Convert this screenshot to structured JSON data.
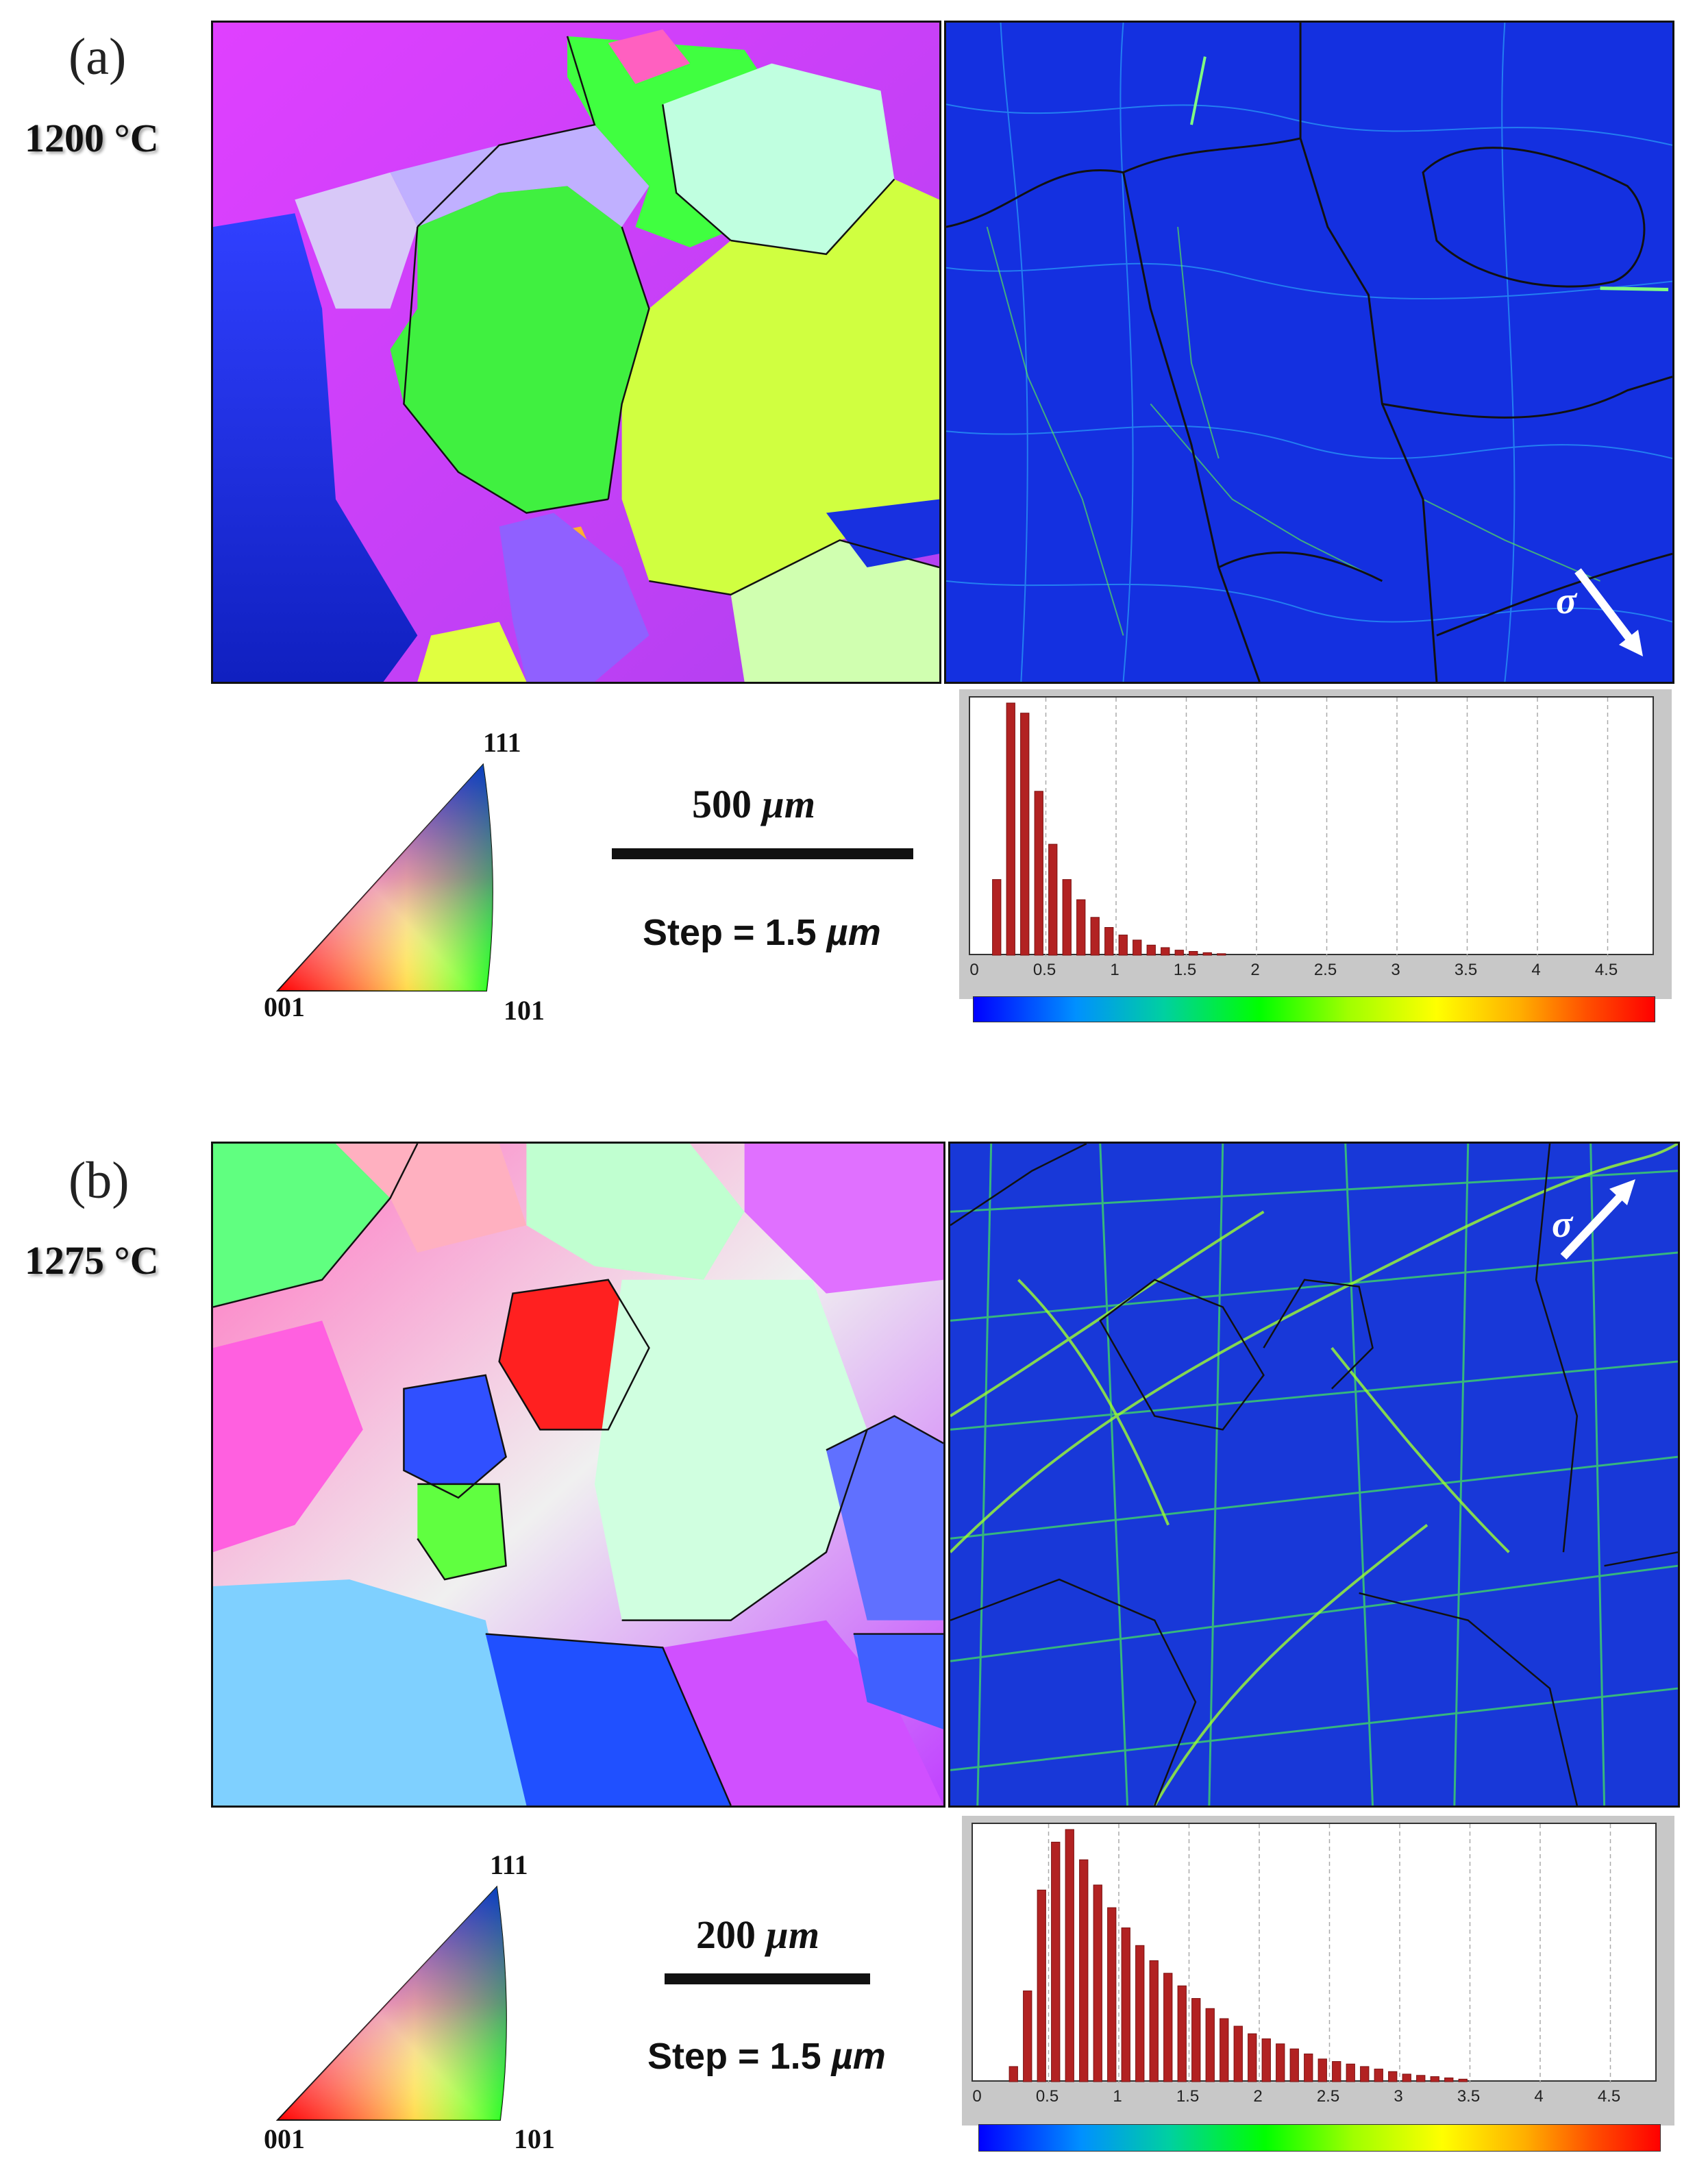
{
  "panels": [
    {
      "label": "(a)",
      "temperature": "1200 °C",
      "ipf": {
        "corner_111": "111",
        "corner_001": "001",
        "corner_101": "101"
      },
      "scale": {
        "value": "500 ",
        "unit": "µm",
        "step_prefix": "Step = 1.5 ",
        "step_unit": "µm"
      },
      "stress_symbol": "σ"
    },
    {
      "label": "(b)",
      "temperature": "1275 °C",
      "ipf": {
        "corner_111": "111",
        "corner_001": "001",
        "corner_101": "101"
      },
      "scale": {
        "value": "200 ",
        "unit": "µm",
        "step_prefix": "Step = 1.5 ",
        "step_unit": "µm"
      },
      "stress_symbol": "σ"
    }
  ],
  "chart_data": [
    {
      "type": "bar",
      "title": "",
      "xlabel": "",
      "ylabel": "",
      "xlim": [
        0,
        4.8
      ],
      "x_ticks": [
        "0",
        "0.5",
        "1",
        "1.5",
        "2",
        "2.5",
        "3",
        "3.5",
        "4",
        "4.5"
      ],
      "bar_color": "#b22222",
      "x": [
        0.15,
        0.25,
        0.35,
        0.45,
        0.55,
        0.65,
        0.75,
        0.85,
        0.95,
        1.05,
        1.15,
        1.25,
        1.35,
        1.45,
        1.55,
        1.65,
        1.75
      ],
      "values": [
        30,
        100,
        96,
        65,
        44,
        30,
        22,
        15,
        11,
        8,
        6,
        4,
        3,
        2,
        1.5,
        1,
        0.6
      ]
    },
    {
      "type": "bar",
      "title": "",
      "xlabel": "",
      "ylabel": "",
      "xlim": [
        0,
        4.8
      ],
      "x_ticks": [
        "0",
        "0.5",
        "1",
        "1.5",
        "2",
        "2.5",
        "3",
        "3.5",
        "4",
        "4.5"
      ],
      "bar_color": "#b22222",
      "x": [
        0.25,
        0.35,
        0.45,
        0.55,
        0.65,
        0.75,
        0.85,
        0.95,
        1.05,
        1.15,
        1.25,
        1.35,
        1.45,
        1.55,
        1.65,
        1.75,
        1.85,
        1.95,
        2.05,
        2.15,
        2.25,
        2.35,
        2.45,
        2.55,
        2.65,
        2.75,
        2.85,
        2.95,
        3.05,
        3.15,
        3.25,
        3.35,
        3.45
      ],
      "values": [
        6,
        36,
        76,
        95,
        100,
        88,
        78,
        69,
        61,
        54,
        48,
        43,
        38,
        33,
        29,
        25,
        22,
        19,
        17,
        15,
        13,
        11,
        9,
        8,
        7,
        6,
        5,
        4,
        3,
        2.5,
        2,
        1.5,
        1
      ]
    }
  ]
}
